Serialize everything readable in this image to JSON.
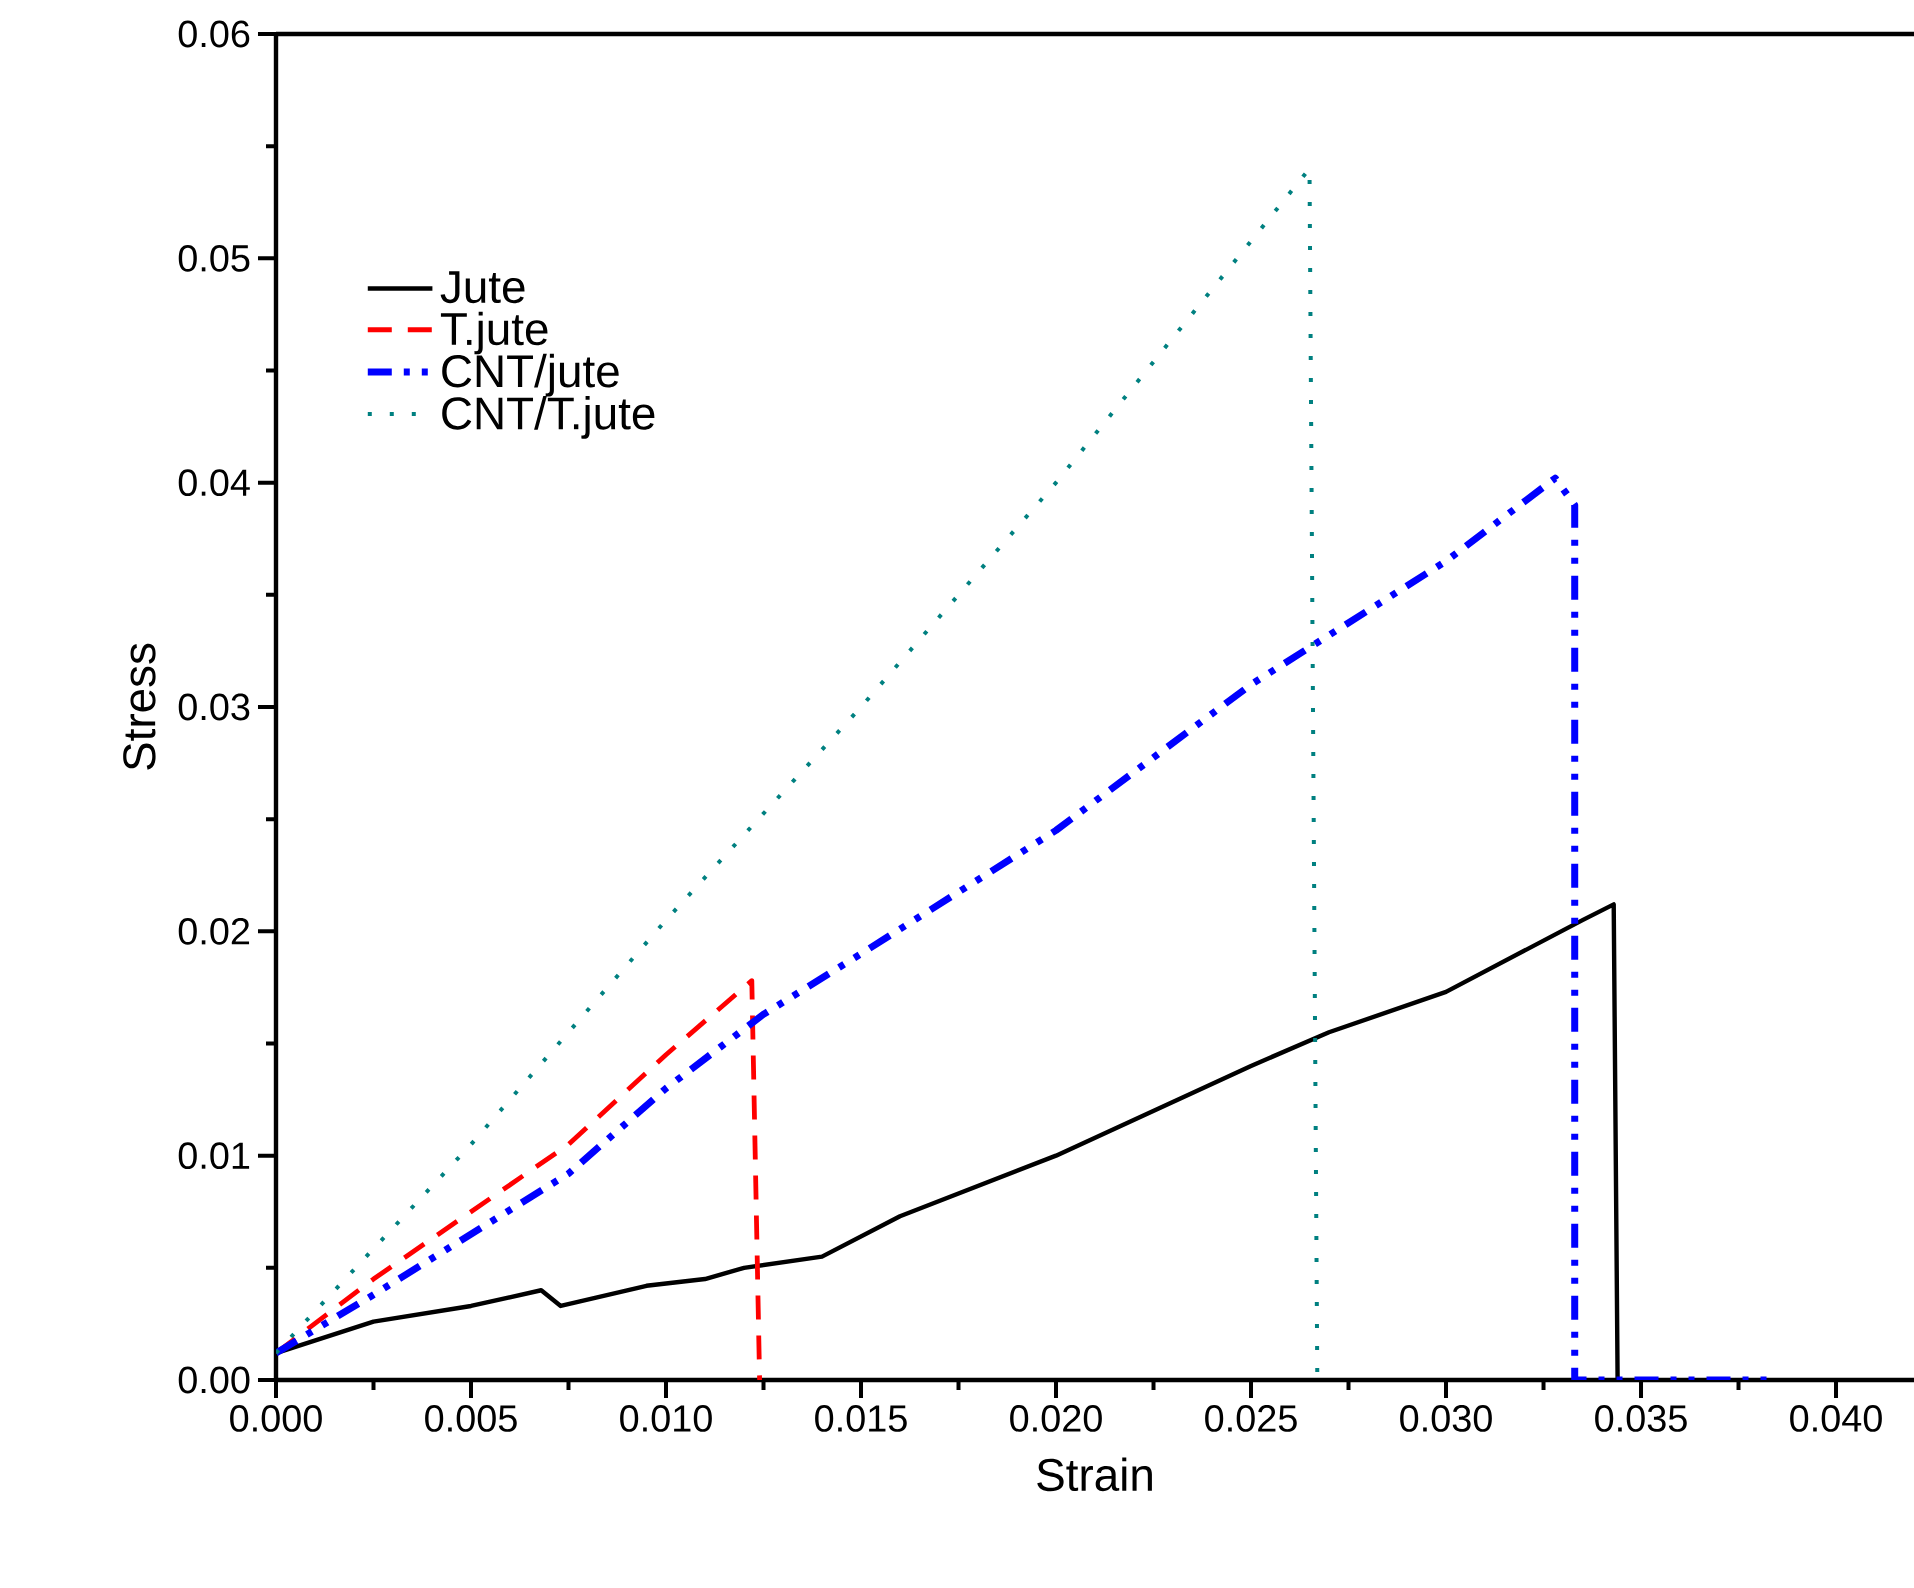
{
  "chart_data": {
    "type": "line",
    "xlabel": "Strain",
    "ylabel": "Stress",
    "xlim": [
      0,
      0.042
    ],
    "ylim": [
      0,
      0.06
    ],
    "xticks": [
      {
        "value": 0,
        "label": "0.000"
      },
      {
        "value": 0.005,
        "label": "0.005"
      },
      {
        "value": 0.01,
        "label": "0.010"
      },
      {
        "value": 0.015,
        "label": "0.015"
      },
      {
        "value": 0.02,
        "label": "0.020"
      },
      {
        "value": 0.025,
        "label": "0.025"
      },
      {
        "value": 0.03,
        "label": "0.030"
      },
      {
        "value": 0.035,
        "label": "0.035"
      },
      {
        "value": 0.04,
        "label": "0.040"
      }
    ],
    "yticks": [
      {
        "value": 0,
        "label": "0.00"
      },
      0.01,
      0.02,
      0.03,
      0.04,
      0.05,
      0.06
    ],
    "grid": false,
    "legend": "top left",
    "marker": "none",
    "series": [
      {
        "name": "Jute",
        "color": "#000000",
        "line_style": "solid",
        "x": [
          0,
          0.0025,
          0.005,
          0.0068,
          0.0073,
          0.0095,
          0.011,
          0.012,
          0.014,
          0.016,
          0.02,
          0.025,
          0.027,
          0.03,
          0.0335,
          0.0343,
          0.0344
        ],
        "values": [
          0.0012,
          0.0026,
          0.0033,
          0.004,
          0.0033,
          0.0042,
          0.0045,
          0.005,
          0.0055,
          0.0073,
          0.01,
          0.014,
          0.0155,
          0.0173,
          0.0205,
          0.0212,
          0
        ]
      },
      {
        "name": "T.jute",
        "color": "#ff0000",
        "line_style": "dashed",
        "x": [
          0,
          0.0025,
          0.005,
          0.0075,
          0.01,
          0.0122,
          0.0124
        ],
        "values": [
          0.0012,
          0.0045,
          0.0075,
          0.0105,
          0.0145,
          0.0178,
          0
        ]
      },
      {
        "name": "CNT/jute",
        "color": "#0000ff",
        "line_style": "dashdotdotted",
        "x": [
          0,
          0.0025,
          0.005,
          0.0075,
          0.01,
          0.0125,
          0.015,
          0.02,
          0.025,
          0.03,
          0.0328,
          0.0333,
          0.0333,
          0.0385
        ],
        "values": [
          0.0012,
          0.0038,
          0.0065,
          0.0092,
          0.013,
          0.0163,
          0.019,
          0.0245,
          0.031,
          0.0365,
          0.0402,
          0.039,
          0,
          0
        ]
      },
      {
        "name": "CNT/T.jute",
        "color": "#008080",
        "line_style": "dotted",
        "x": [
          0,
          0.005,
          0.01,
          0.015,
          0.02,
          0.0265,
          0.0267
        ],
        "values": [
          0.0012,
          0.0105,
          0.0205,
          0.03,
          0.04,
          0.054,
          0
        ]
      }
    ]
  }
}
